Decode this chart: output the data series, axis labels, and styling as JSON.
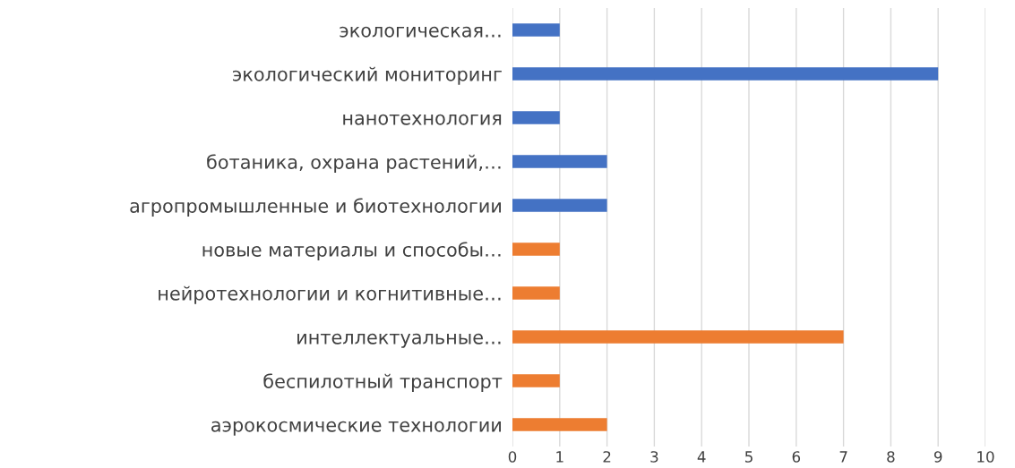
{
  "chart_data": {
    "type": "bar",
    "orientation": "horizontal",
    "categories": [
      "экологическая…",
      "экологический мониторинг",
      "нанотехнология",
      "ботаника, охрана растений,…",
      "агропромышленные и биотехнологии",
      "новые материалы и способы…",
      "нейротехнологии и когнитивные…",
      "интеллектуальные…",
      "беспилотный транспорт",
      "аэрокосмические технологии"
    ],
    "values": [
      1,
      9,
      1,
      2,
      2,
      1,
      1,
      7,
      1,
      2
    ],
    "colors": [
      "#4472c4",
      "#4472c4",
      "#4472c4",
      "#4472c4",
      "#4472c4",
      "#ed7d31",
      "#ed7d31",
      "#ed7d31",
      "#ed7d31",
      "#ed7d31"
    ],
    "xlim": [
      0,
      10
    ],
    "xticks": [
      0,
      1,
      2,
      3,
      4,
      5,
      6,
      7,
      8,
      9,
      10
    ],
    "grid": "x"
  }
}
